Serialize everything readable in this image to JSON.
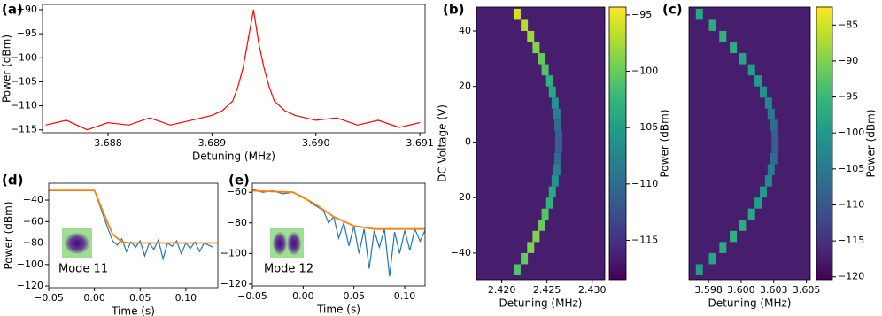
{
  "chart_data": [
    {
      "type": "line",
      "panel_label": "(a)",
      "xlabel": "Detuning (MHz)",
      "ylabel": "Power (dBm)",
      "xlim": [
        3.68737,
        3.69105
      ],
      "ylim": [
        -115.6,
        -88.9
      ],
      "xticks": [
        3.688,
        3.689,
        {
          "value": 3.69,
          "label": "3.690"
        },
        3.691
      ],
      "yticks": [
        {
          "value": -90,
          "label": "−90"
        },
        {
          "value": -95,
          "label": "−95"
        },
        {
          "value": -100,
          "label": "−100"
        },
        {
          "value": -105,
          "label": "−105"
        },
        {
          "value": -110,
          "label": "−110"
        },
        {
          "value": -115,
          "label": "−115"
        }
      ],
      "series": [
        {
          "color": "#ff0000",
          "x": [
            3.6874,
            3.6876,
            3.6878,
            3.688,
            3.6882,
            3.6884,
            3.6886,
            3.6888,
            3.689,
            3.6891,
            3.6892,
            3.68925,
            3.6893,
            3.68935,
            3.6894,
            3.68945,
            3.6895,
            3.68955,
            3.6896,
            3.6897,
            3.6898,
            3.69,
            3.6902,
            3.6904,
            3.6906,
            3.6908,
            3.691
          ],
          "values": [
            -114,
            -113,
            -115,
            -113.5,
            -114,
            -112.5,
            -114,
            -113,
            -112,
            -111,
            -109,
            -106,
            -102,
            -96,
            -90,
            -97,
            -102,
            -106,
            -109,
            -111,
            -112,
            -113,
            -112.5,
            -114,
            -113,
            -114.5,
            -113.5
          ]
        }
      ]
    },
    {
      "type": "heatmap",
      "panel_label": "(b)",
      "xlabel": "Detuning (MHz)",
      "ylabel": "DC Voltage (V)",
      "clabel": "Power (dBm)",
      "colormap": "viridis",
      "xlim": [
        2.4172,
        2.4314
      ],
      "ylim": [
        -49.6,
        48.6
      ],
      "clim": [
        -118.5,
        -94.3
      ],
      "xticks": [
        {
          "value": 2.42,
          "label": "2.420"
        },
        2.425,
        {
          "value": 2.43,
          "label": "2.430"
        }
      ],
      "yticks": [
        40,
        20,
        0,
        {
          "value": -20,
          "label": "−20"
        },
        {
          "value": -40,
          "label": "−40"
        }
      ],
      "cticks": [
        {
          "value": -95,
          "label": "−95"
        },
        {
          "value": -100,
          "label": "−100"
        },
        {
          "value": -105,
          "label": "−105"
        },
        {
          "value": -110,
          "label": "−110"
        },
        {
          "value": -115,
          "label": "−115"
        }
      ],
      "x": [
        2.4217,
        2.4225,
        2.4232,
        2.4238,
        2.4244,
        2.4248,
        2.4253,
        2.4256,
        2.4259,
        2.4261,
        2.4262,
        2.4263,
        2.4263,
        2.4262,
        2.4261,
        2.4259,
        2.4256,
        2.4253,
        2.4248,
        2.4244,
        2.4238,
        2.4232,
        2.4225,
        2.4217
      ],
      "y": [
        46,
        42,
        38,
        34,
        30,
        26,
        22,
        18,
        14,
        10,
        6,
        2,
        -2,
        -6,
        -10,
        -14,
        -18,
        -22,
        -26,
        -30,
        -34,
        -38,
        -42,
        -46
      ],
      "values": [
        -96,
        -97,
        -98,
        -99,
        -100,
        -101,
        -103,
        -104,
        -106,
        -108,
        -110,
        -111,
        -111,
        -110,
        -108,
        -106,
        -104,
        -103,
        -101,
        -100,
        -99,
        -99,
        -100,
        -101
      ]
    },
    {
      "type": "heatmap",
      "panel_label": "(c)",
      "xlabel": "Detuning (MHz)",
      "clabel": "Power (dBm)",
      "colormap": "viridis",
      "xlim": [
        3.596,
        3.6053
      ],
      "ylim": [
        -49.6,
        48.6
      ],
      "clim": [
        -120.4,
        -82.5
      ],
      "xticks": [
        {
          "value": 3.5975,
          "label": "3.598"
        },
        {
          "value": 3.6,
          "label": "3.600"
        },
        {
          "value": 3.6025,
          "label": "3.603"
        },
        3.605
      ],
      "cticks": [
        {
          "value": -85,
          "label": "−85"
        },
        {
          "value": -90,
          "label": "−90"
        },
        {
          "value": -95,
          "label": "−95"
        },
        {
          "value": -100,
          "label": "−100"
        },
        {
          "value": -105,
          "label": "−105"
        },
        {
          "value": -110,
          "label": "−110"
        },
        {
          "value": -115,
          "label": "−115"
        },
        {
          "value": -120,
          "label": "−120"
        }
      ],
      "x": [
        3.5968,
        3.5978,
        3.5986,
        3.5994,
        3.6001,
        3.6008,
        3.6013,
        3.6017,
        3.6021,
        3.6023,
        3.6025,
        3.6026,
        3.6026,
        3.6025,
        3.6023,
        3.6021,
        3.6017,
        3.6013,
        3.6008,
        3.6001,
        3.5994,
        3.5986,
        3.5978,
        3.5968
      ],
      "y": [
        46,
        42,
        38,
        34,
        30,
        26,
        22,
        18,
        14,
        10,
        6,
        2,
        -2,
        -6,
        -10,
        -14,
        -18,
        -22,
        -26,
        -30,
        -34,
        -38,
        -42,
        -46
      ],
      "values": [
        -98,
        -97,
        -96,
        -97,
        -98,
        -99,
        -100,
        -101,
        -103,
        -105,
        -107,
        -109,
        -109,
        -107,
        -104,
        -102,
        -100,
        -99,
        -98,
        -97,
        -96,
        -97,
        -98,
        -99
      ]
    },
    {
      "type": "line",
      "panel_label": "(d)",
      "xlabel": "Time (s)",
      "ylabel": "Power (dBm)",
      "annotation": "Mode 11",
      "xlim": [
        -0.05,
        0.135
      ],
      "ylim": [
        -121.6,
        -24.3
      ],
      "xticks": [
        {
          "value": -0.05,
          "label": "−0.05"
        },
        {
          "value": 0,
          "label": "0.00"
        },
        0.05,
        {
          "value": 0.1,
          "label": "0.10"
        }
      ],
      "yticks": [
        {
          "value": -40,
          "label": "−40"
        },
        {
          "value": -60,
          "label": "−60"
        },
        {
          "value": -80,
          "label": "−80"
        },
        {
          "value": -100,
          "label": "−100"
        },
        {
          "value": -120,
          "label": "−120"
        }
      ],
      "series": [
        {
          "color": "#1f77b4",
          "x": [
            -0.05,
            0,
            0.005,
            0.01,
            0.015,
            0.02,
            0.025,
            0.03,
            0.035,
            0.04,
            0.045,
            0.05,
            0.055,
            0.06,
            0.065,
            0.07,
            0.075,
            0.08,
            0.085,
            0.09,
            0.095,
            0.1,
            0.105,
            0.11,
            0.115,
            0.12,
            0.13
          ],
          "values": [
            -31,
            -31,
            -43,
            -55,
            -67,
            -78,
            -82,
            -76,
            -88,
            -79,
            -84,
            -78,
            -92,
            -80,
            -86,
            -77,
            -95,
            -80,
            -83,
            -78,
            -90,
            -80,
            -85,
            -79,
            -88,
            -80,
            -84
          ]
        },
        {
          "color": "#ff7f0e",
          "x": [
            -0.05,
            0,
            0.01,
            0.02,
            0.03,
            0.04,
            0.135
          ],
          "values": [
            -31,
            -31,
            -52,
            -72,
            -79,
            -80,
            -80
          ]
        }
      ]
    },
    {
      "type": "line",
      "panel_label": "(e)",
      "xlabel": "Time (s)",
      "annotation": "Mode 12",
      "xlim": [
        -0.05,
        0.12
      ],
      "ylim": [
        -121.2,
        -54.1
      ],
      "xticks": [
        {
          "value": -0.05,
          "label": "−0.05"
        },
        {
          "value": 0,
          "label": "0.00"
        },
        0.05,
        {
          "value": 0.1,
          "label": "0.10"
        }
      ],
      "yticks": [
        {
          "value": -60,
          "label": "−60"
        },
        {
          "value": -80,
          "label": "−80"
        },
        {
          "value": -100,
          "label": "−100"
        },
        {
          "value": -120,
          "label": "−120"
        }
      ],
      "series": [
        {
          "color": "#1f77b4",
          "x": [
            -0.05,
            -0.04,
            -0.03,
            -0.02,
            -0.01,
            0,
            0.01,
            0.02,
            0.025,
            0.03,
            0.035,
            0.04,
            0.045,
            0.05,
            0.055,
            0.06,
            0.065,
            0.07,
            0.075,
            0.08,
            0.085,
            0.09,
            0.095,
            0.1,
            0.105,
            0.11,
            0.115,
            0.12
          ],
          "values": [
            -58,
            -60,
            -59,
            -61,
            -60,
            -63,
            -68,
            -72,
            -80,
            -76,
            -90,
            -80,
            -95,
            -82,
            -100,
            -84,
            -110,
            -85,
            -96,
            -84,
            -115,
            -86,
            -100,
            -85,
            -98,
            -84,
            -92,
            -85
          ]
        },
        {
          "color": "#ff7f0e",
          "x": [
            -0.05,
            -0.01,
            0.01,
            0.03,
            0.05,
            0.07,
            0.12
          ],
          "values": [
            -59,
            -60,
            -67,
            -76,
            -82,
            -84,
            -84
          ]
        }
      ]
    }
  ]
}
